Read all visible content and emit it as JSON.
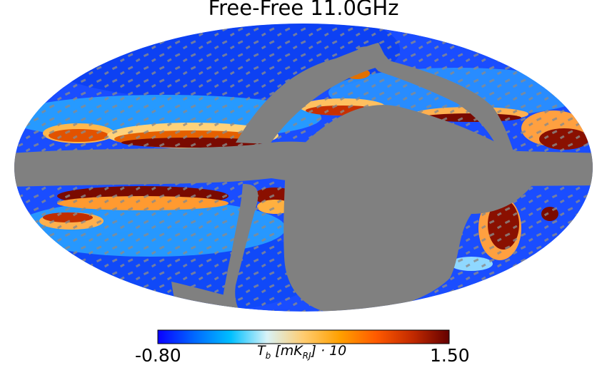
{
  "title": "Free-Free 11.0GHz",
  "projection": "mollweide",
  "colormap": {
    "name": "planck",
    "min_label": "-0.80",
    "max_label": "1.50",
    "min": -0.8,
    "max": 1.5,
    "label": "T_b [mK_RJ] · 10",
    "stops": [
      "#0a00ff",
      "#0068ff",
      "#00bfff",
      "#d8f3f7",
      "#ffcc70",
      "#ffa000",
      "#ff5a00",
      "#c22a00",
      "#640000"
    ]
  },
  "colors": {
    "mask": "#808080",
    "background": "#ffffff"
  }
}
